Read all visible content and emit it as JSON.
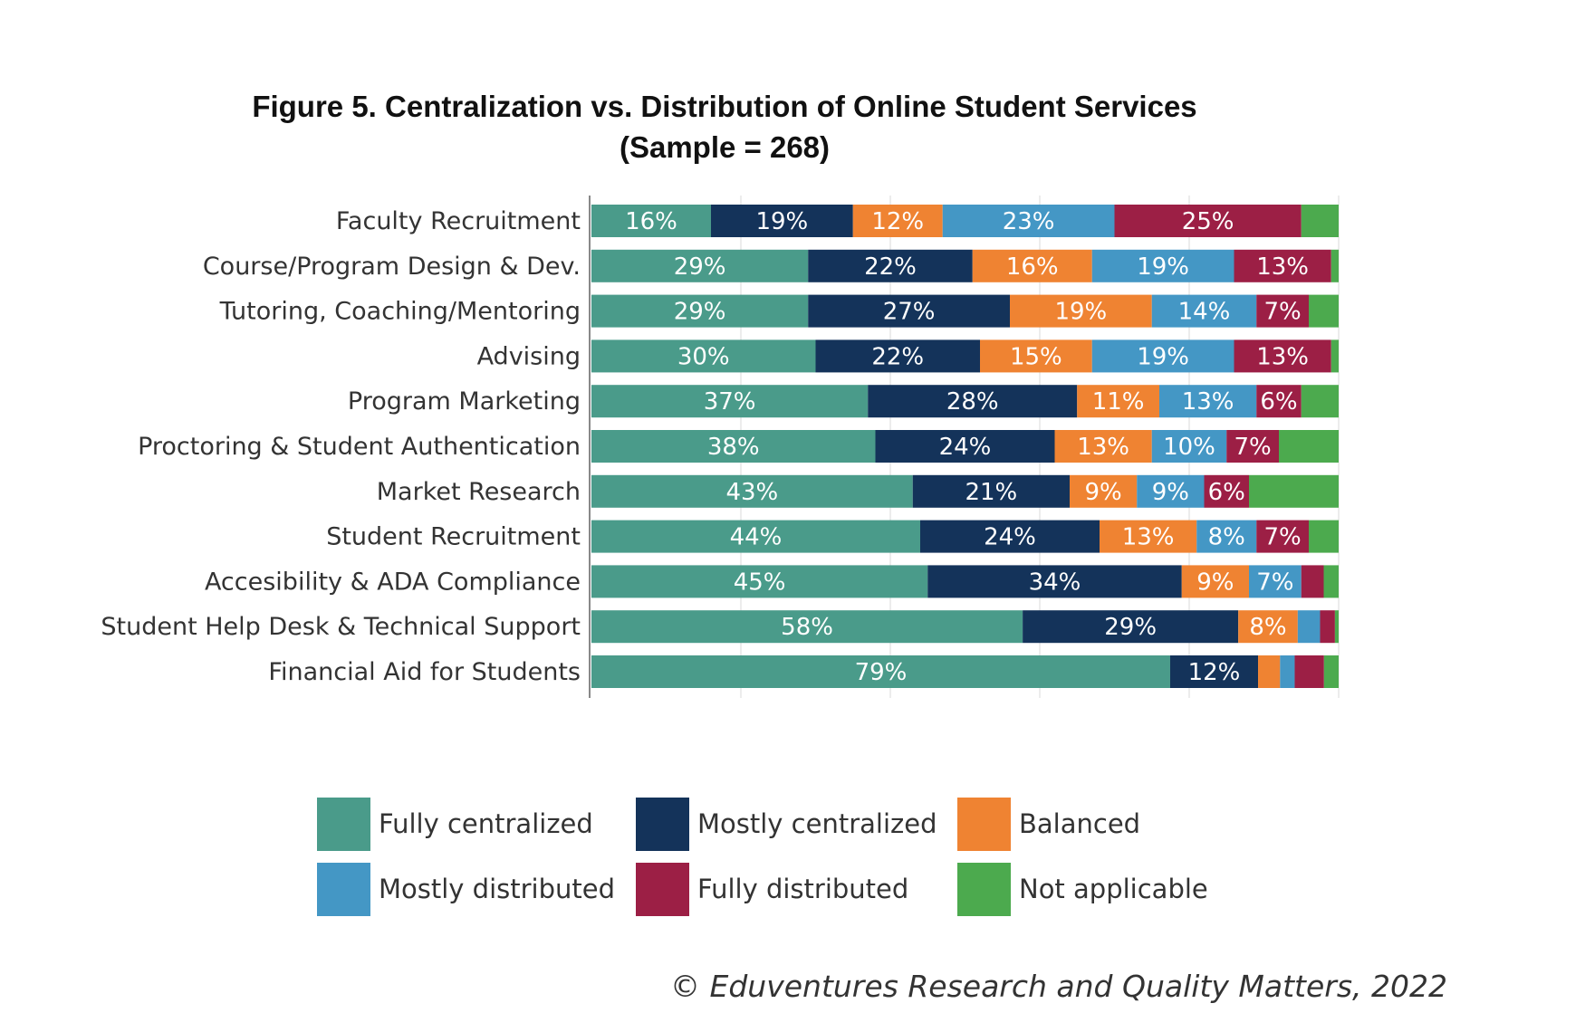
{
  "title": {
    "line1": "Figure 5. Centralization vs. Distribution of Online Student Services",
    "line2": "(Sample = 268)"
  },
  "credit": "© Eduventures Research and Quality Matters, 2022",
  "chart_data": {
    "type": "bar",
    "orientation": "horizontal",
    "stacked": true,
    "xlim": [
      0,
      100
    ],
    "grid": true,
    "legend_position": "bottom",
    "categories": [
      "Faculty Recruitment",
      "Course/Program Design & Dev.",
      "Tutoring, Coaching/Mentoring",
      "Advising",
      "Program Marketing",
      "Proctoring & Student Authentication",
      "Market Research",
      "Student Recruitment",
      "Accesibility & ADA Compliance",
      "Student Help Desk & Technical Support",
      "Financial Aid for Students"
    ],
    "series": [
      {
        "name": "Fully centralized",
        "color": "#4a9b8a",
        "values": [
          16,
          29,
          29,
          30,
          37,
          38,
          43,
          44,
          45,
          58,
          79
        ],
        "labels": [
          "16%",
          "29%",
          "29%",
          "30%",
          "37%",
          "38%",
          "43%",
          "44%",
          "45%",
          "58%",
          "79%"
        ]
      },
      {
        "name": "Mostly centralized",
        "color": "#14335a",
        "values": [
          19,
          22,
          27,
          22,
          28,
          24,
          21,
          24,
          34,
          29,
          12
        ],
        "labels": [
          "19%",
          "22%",
          "27%",
          "22%",
          "28%",
          "24%",
          "21%",
          "24%",
          "34%",
          "29%",
          "12%"
        ]
      },
      {
        "name": "Balanced",
        "color": "#ef8332",
        "values": [
          12,
          16,
          19,
          15,
          11,
          13,
          9,
          13,
          9,
          8,
          3
        ],
        "labels": [
          "12%",
          "16%",
          "19%",
          "15%",
          "11%",
          "13%",
          "9%",
          "13%",
          "9%",
          "8%",
          ""
        ]
      },
      {
        "name": "Mostly distributed",
        "color": "#4497c5",
        "values": [
          23,
          19,
          14,
          19,
          13,
          10,
          9,
          8,
          7,
          3,
          2
        ],
        "labels": [
          "23%",
          "19%",
          "14%",
          "19%",
          "13%",
          "10%",
          "9%",
          "8%",
          "7%",
          "",
          ""
        ]
      },
      {
        "name": "Fully distributed",
        "color": "#9c1f45",
        "values": [
          25,
          13,
          7,
          13,
          6,
          7,
          6,
          7,
          3,
          2,
          4
        ],
        "labels": [
          "25%",
          "13%",
          "7%",
          "13%",
          "6%",
          "7%",
          "6%",
          "7%",
          "",
          "",
          ""
        ]
      },
      {
        "name": "Not applicable",
        "color": "#4caa4e",
        "values": [
          5,
          1,
          4,
          1,
          5,
          8,
          12,
          4,
          2,
          0.5,
          2
        ],
        "labels": [
          "",
          "",
          "",
          "",
          "",
          "",
          "",
          "",
          "",
          "",
          ""
        ]
      }
    ]
  }
}
